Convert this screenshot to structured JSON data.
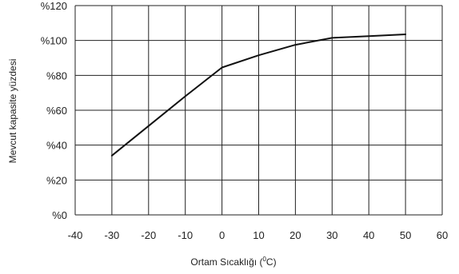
{
  "chart_data": {
    "type": "line",
    "title": "",
    "xlabel_parts": {
      "prefix": "Ortam Sıcaklığı  (",
      "superscript": "0",
      "suffix": "C)"
    },
    "ylabel": "Mevcut kapasite yüzdesi",
    "xlim": [
      -40,
      60
    ],
    "ylim": [
      0,
      120
    ],
    "x_ticks": [
      -40,
      -30,
      -20,
      -10,
      0,
      10,
      20,
      30,
      40,
      50,
      60
    ],
    "x_tick_labels": [
      "-40",
      "-30",
      "-20",
      "-10",
      "0",
      "10",
      "20",
      "30",
      "40",
      "50",
      "60"
    ],
    "y_ticks": [
      0,
      20,
      40,
      60,
      80,
      100,
      120
    ],
    "y_tick_labels": [
      "%0",
      "%20",
      "%40",
      "%60",
      "%80",
      "%100",
      "%120"
    ],
    "grid": true,
    "series": [
      {
        "x": [
          -30,
          -20,
          -10,
          0,
          10,
          20,
          30,
          40,
          50
        ],
        "y": [
          34,
          51,
          68,
          84.5,
          91.5,
          97.5,
          101.5,
          102.5,
          103.5
        ]
      }
    ]
  },
  "style": {
    "grid_color": "#222222",
    "line_color": "#111111"
  }
}
